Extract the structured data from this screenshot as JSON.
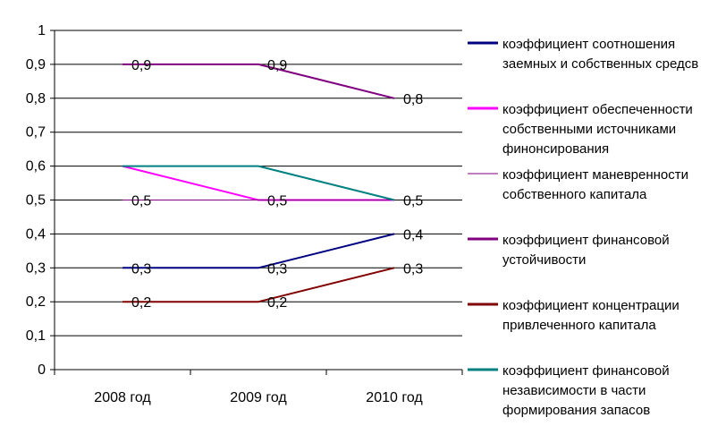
{
  "chart_data": {
    "type": "line",
    "categories": [
      "2008 год",
      "2009 год",
      "2010 год"
    ],
    "y_ticks": [
      "0",
      "0,1",
      "0,2",
      "0,3",
      "0,4",
      "0,5",
      "0,6",
      "0,7",
      "0,8",
      "0,9",
      "1"
    ],
    "ylim": [
      0,
      1
    ],
    "grid": true,
    "legend_position": "right",
    "series": [
      {
        "name": "коэффициент соотношения заемных и собственных средсв",
        "legend_lines": [
          "коэффициент соотношения",
          "заемных и собственных средсв"
        ],
        "color": "#000080",
        "width": 2,
        "values": [
          0.3,
          0.3,
          0.4
        ],
        "labels": [
          "0,3",
          "0,3",
          "0,4"
        ]
      },
      {
        "name": "коэффициент обеспеченности собственными источниками финонсирования",
        "legend_lines": [
          "коэффициент обеспеченности",
          "собственными источниками",
          "финонсирования"
        ],
        "color": "#ff00ff",
        "width": 2,
        "values": [
          0.6,
          0.5,
          0.5
        ],
        "labels": [
          "",
          "",
          ""
        ]
      },
      {
        "name": "коэффициент маневренности собственного капитала",
        "legend_lines": [
          "коэффициент маневренности",
          "собственного капитала"
        ],
        "color": "#800080",
        "width": 1,
        "values": [
          0.5,
          0.5,
          0.5
        ],
        "labels": [
          "0,5",
          "0,5",
          "0,5"
        ]
      },
      {
        "name": "коэффициент финансовой устойчивости",
        "legend_lines": [
          "коэффициент финансовой",
          "устойчивости"
        ],
        "color": "#800080",
        "width": 2,
        "values": [
          0.9,
          0.9,
          0.8
        ],
        "labels": [
          "0,9",
          "0,9",
          "0,8"
        ]
      },
      {
        "name": "коэффициент концентрации привлеченного капитала",
        "legend_lines": [
          "коэффициент концентрации",
          "привлеченного капитала"
        ],
        "color": "#800000",
        "width": 2,
        "values": [
          0.2,
          0.2,
          0.3
        ],
        "labels": [
          "0,2",
          "0,2",
          "0,3"
        ]
      },
      {
        "name": "коэффициент финансовой независимости в части формирования запасов",
        "legend_lines": [
          "коэффициент финансовой",
          "независимости в части",
          "формирования запасов"
        ],
        "color": "#008080",
        "width": 2,
        "values": [
          0.6,
          0.6,
          0.5
        ],
        "labels": [
          "",
          "",
          ""
        ]
      }
    ]
  }
}
